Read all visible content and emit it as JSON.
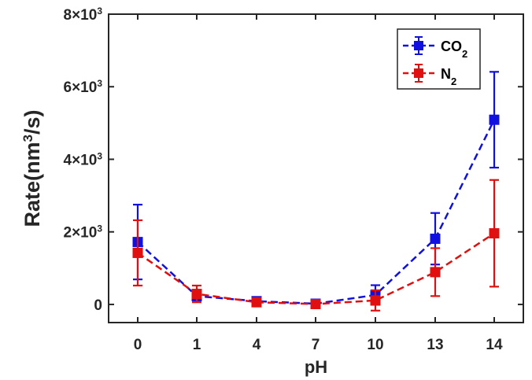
{
  "chart_data": {
    "type": "line",
    "title": "",
    "xlabel": "pH",
    "ylabel": "Rate(nm³/s)",
    "ylabel_parts": {
      "base": "Rate(nm",
      "sup": "3",
      "tail": "/s)"
    },
    "categories": [
      "0",
      "1",
      "4",
      "7",
      "10",
      "13",
      "14"
    ],
    "ylim": [
      -500,
      8000
    ],
    "yticks": [
      {
        "value": 0,
        "mantissa": "0",
        "exponent": ""
      },
      {
        "value": 2000,
        "mantissa": "2×10",
        "exponent": "3"
      },
      {
        "value": 4000,
        "mantissa": "4×10",
        "exponent": "3"
      },
      {
        "value": 6000,
        "mantissa": "6×10",
        "exponent": "3"
      },
      {
        "value": 8000,
        "mantissa": "8×10",
        "exponent": "3"
      }
    ],
    "grid": false,
    "legend_position": "top-right",
    "series": [
      {
        "name": "CO₂",
        "label_base": "CO",
        "label_sub": "2",
        "color": "#1010e0",
        "values": [
          1720,
          230,
          90,
          20,
          260,
          1810,
          5090
        ],
        "errors": [
          1030,
          120,
          60,
          40,
          270,
          710,
          1320
        ]
      },
      {
        "name": "N₂",
        "label_base": "N",
        "label_sub": "2",
        "color": "#e01010",
        "values": [
          1420,
          290,
          60,
          10,
          110,
          890,
          1960
        ],
        "errors": [
          900,
          230,
          70,
          70,
          280,
          660,
          1470
        ]
      }
    ]
  }
}
